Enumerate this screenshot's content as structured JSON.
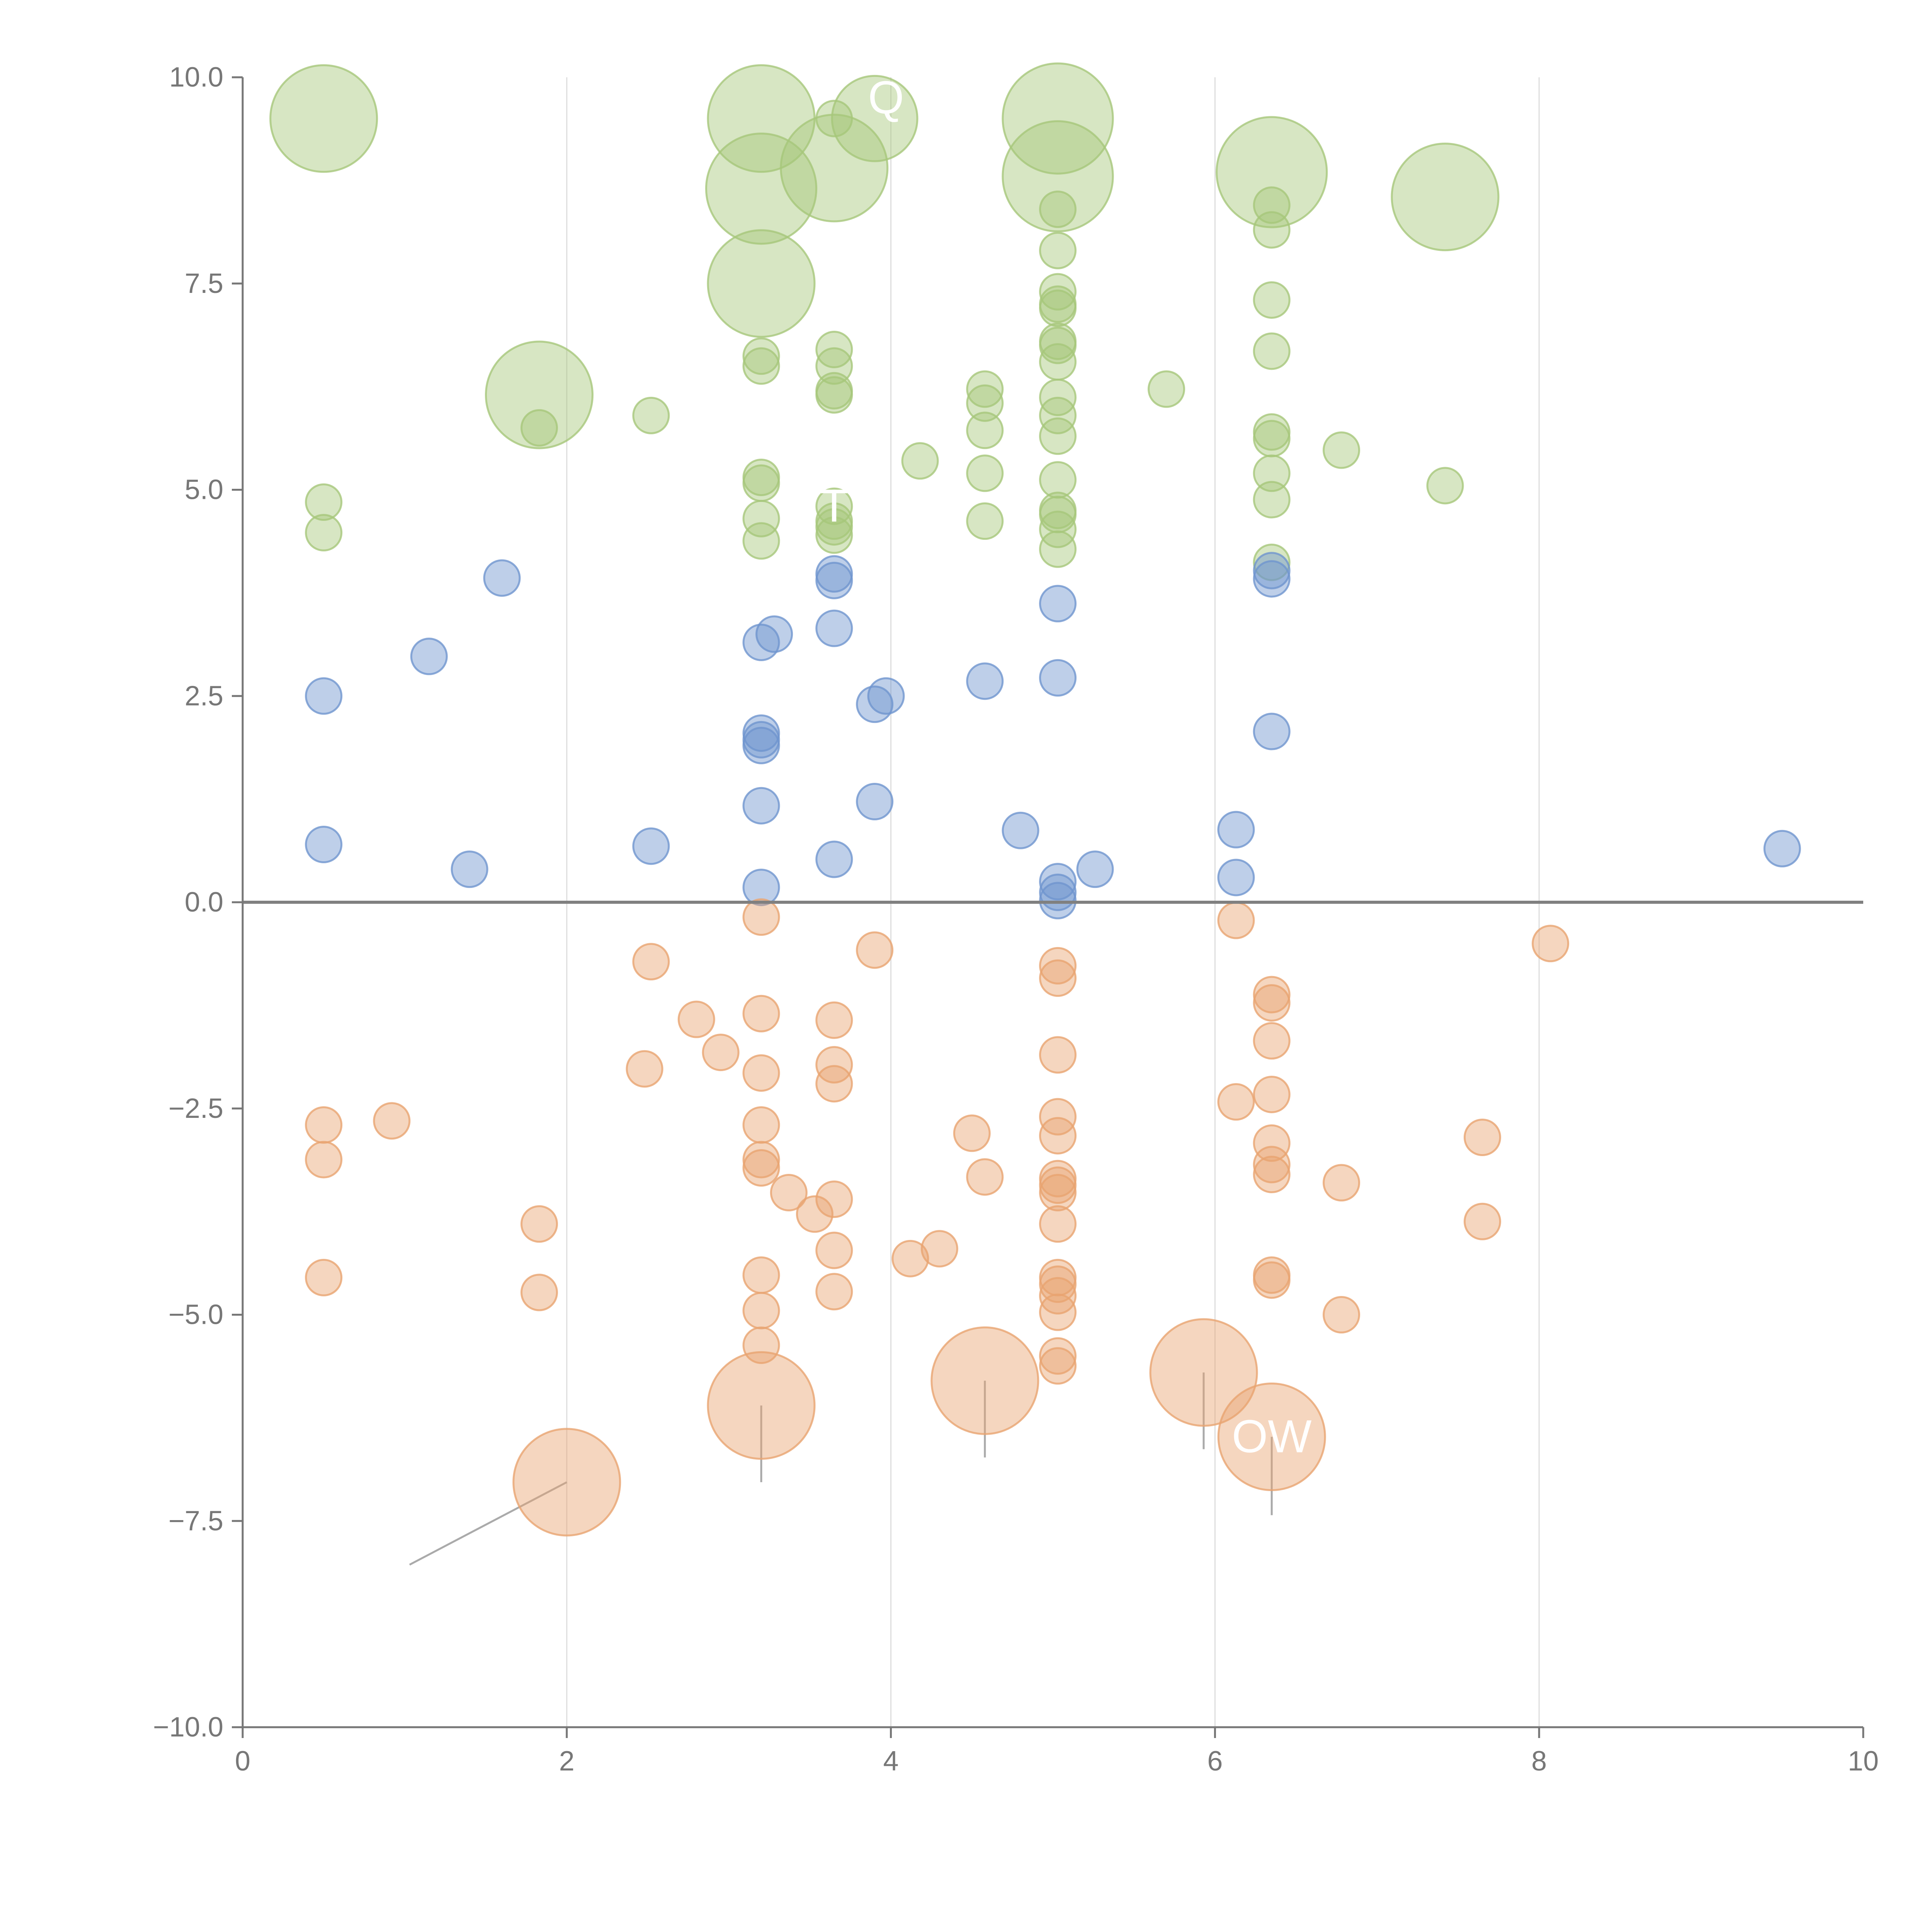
{
  "chart_data": {
    "type": "scatter",
    "title": "",
    "xlabel": "",
    "ylabel": "",
    "xlim": [
      0,
      10
    ],
    "ylim": [
      -10,
      10
    ],
    "xticks": [
      0,
      2,
      4,
      6,
      8,
      10
    ],
    "yticks": [
      -10,
      -7.5,
      -5,
      -2.5,
      0,
      2.5,
      5,
      7.5,
      10
    ],
    "xtick_labels": [
      "0",
      "2",
      "4",
      "6",
      "8",
      "10"
    ],
    "ytick_labels": [
      "−10.0",
      "−7.5",
      "−5.0",
      "−2.5",
      "0.0",
      "2.5",
      "5.0",
      "7.5",
      "10.0"
    ],
    "vertical_gridlines_at": [
      2,
      4,
      6,
      8
    ],
    "zero_line_y": 0,
    "colors": {
      "green": "#a6c77a",
      "blue": "#6f95ce",
      "orange": "#e9a471",
      "axis": "#777777",
      "grid": "#dddddd",
      "zero": "#808080",
      "leader": "#aaaaaa",
      "label": "#ffffff"
    },
    "series": [
      {
        "name": "green",
        "color": "#a6c77a",
        "points": [
          {
            "x": 0.5,
            "y": 9.5,
            "s": 3
          },
          {
            "x": 3.2,
            "y": 9.5,
            "s": 3
          },
          {
            "x": 3.65,
            "y": 9.5,
            "s": 1
          },
          {
            "x": 3.9,
            "y": 9.5,
            "s": 2.4
          },
          {
            "x": 5.03,
            "y": 9.5,
            "s": 3.1
          },
          {
            "x": 3.65,
            "y": 8.9,
            "s": 3
          },
          {
            "x": 5.03,
            "y": 8.8,
            "s": 3.1
          },
          {
            "x": 3.2,
            "y": 8.65,
            "s": 3.1
          },
          {
            "x": 6.35,
            "y": 8.85,
            "s": 3.1
          },
          {
            "x": 7.42,
            "y": 8.55,
            "s": 3
          },
          {
            "x": 6.35,
            "y": 8.45,
            "s": 1
          },
          {
            "x": 5.03,
            "y": 8.4,
            "s": 1
          },
          {
            "x": 6.35,
            "y": 8.15,
            "s": 1
          },
          {
            "x": 5.03,
            "y": 7.9,
            "s": 1
          },
          {
            "x": 3.2,
            "y": 7.5,
            "s": 3
          },
          {
            "x": 5.03,
            "y": 7.4,
            "s": 1
          },
          {
            "x": 6.35,
            "y": 7.3,
            "s": 1
          },
          {
            "x": 5.03,
            "y": 7.2,
            "s": 1
          },
          {
            "x": 5.03,
            "y": 7.25,
            "s": 1
          },
          {
            "x": 5.03,
            "y": 6.8,
            "s": 1
          },
          {
            "x": 5.03,
            "y": 6.75,
            "s": 1
          },
          {
            "x": 3.65,
            "y": 6.7,
            "s": 1
          },
          {
            "x": 6.35,
            "y": 6.68,
            "s": 1
          },
          {
            "x": 3.2,
            "y": 6.62,
            "s": 1
          },
          {
            "x": 5.03,
            "y": 6.55,
            "s": 1
          },
          {
            "x": 3.2,
            "y": 6.5,
            "s": 1
          },
          {
            "x": 3.65,
            "y": 6.5,
            "s": 1
          },
          {
            "x": 4.58,
            "y": 6.22,
            "s": 1
          },
          {
            "x": 5.7,
            "y": 6.22,
            "s": 1
          },
          {
            "x": 3.65,
            "y": 6.2,
            "s": 1
          },
          {
            "x": 3.65,
            "y": 6.15,
            "s": 1
          },
          {
            "x": 1.83,
            "y": 6.15,
            "s": 3
          },
          {
            "x": 5.03,
            "y": 6.12,
            "s": 1
          },
          {
            "x": 4.58,
            "y": 6.05,
            "s": 1
          },
          {
            "x": 2.52,
            "y": 5.9,
            "s": 1
          },
          {
            "x": 5.03,
            "y": 5.9,
            "s": 1
          },
          {
            "x": 1.83,
            "y": 5.75,
            "s": 1
          },
          {
            "x": 4.58,
            "y": 5.72,
            "s": 1
          },
          {
            "x": 6.35,
            "y": 5.7,
            "s": 1
          },
          {
            "x": 5.03,
            "y": 5.65,
            "s": 1
          },
          {
            "x": 6.35,
            "y": 5.62,
            "s": 1
          },
          {
            "x": 6.78,
            "y": 5.48,
            "s": 1
          },
          {
            "x": 4.18,
            "y": 5.35,
            "s": 1
          },
          {
            "x": 6.35,
            "y": 5.2,
            "s": 1
          },
          {
            "x": 4.58,
            "y": 5.2,
            "s": 1
          },
          {
            "x": 3.2,
            "y": 5.15,
            "s": 1
          },
          {
            "x": 5.03,
            "y": 5.12,
            "s": 1
          },
          {
            "x": 3.2,
            "y": 5.08,
            "s": 1
          },
          {
            "x": 7.42,
            "y": 5.05,
            "s": 1
          },
          {
            "x": 6.35,
            "y": 4.88,
            "s": 1
          },
          {
            "x": 0.5,
            "y": 4.85,
            "s": 1
          },
          {
            "x": 3.65,
            "y": 4.8,
            "s": 1
          },
          {
            "x": 5.03,
            "y": 4.75,
            "s": 1
          },
          {
            "x": 5.03,
            "y": 4.7,
            "s": 1
          },
          {
            "x": 3.2,
            "y": 4.65,
            "s": 1
          },
          {
            "x": 3.65,
            "y": 4.62,
            "s": 1
          },
          {
            "x": 4.58,
            "y": 4.62,
            "s": 1
          },
          {
            "x": 3.65,
            "y": 4.55,
            "s": 1
          },
          {
            "x": 5.03,
            "y": 4.52,
            "s": 1
          },
          {
            "x": 0.5,
            "y": 4.48,
            "s": 1
          },
          {
            "x": 3.65,
            "y": 4.45,
            "s": 1
          },
          {
            "x": 3.2,
            "y": 4.38,
            "s": 1
          },
          {
            "x": 5.03,
            "y": 4.28,
            "s": 1
          },
          {
            "x": 6.35,
            "y": 4.12,
            "s": 1
          }
        ]
      },
      {
        "name": "blue",
        "color": "#6f95ce",
        "points": [
          {
            "x": 6.35,
            "y": 4.02,
            "s": 1
          },
          {
            "x": 3.65,
            "y": 3.98,
            "s": 1
          },
          {
            "x": 1.6,
            "y": 3.93,
            "s": 1
          },
          {
            "x": 6.35,
            "y": 3.92,
            "s": 1
          },
          {
            "x": 3.65,
            "y": 3.9,
            "s": 1
          },
          {
            "x": 5.03,
            "y": 3.62,
            "s": 1
          },
          {
            "x": 3.65,
            "y": 3.32,
            "s": 1
          },
          {
            "x": 3.28,
            "y": 3.25,
            "s": 1
          },
          {
            "x": 3.2,
            "y": 3.15,
            "s": 1
          },
          {
            "x": 1.15,
            "y": 2.98,
            "s": 1
          },
          {
            "x": 5.03,
            "y": 2.72,
            "s": 1
          },
          {
            "x": 4.58,
            "y": 2.68,
            "s": 1
          },
          {
            "x": 0.5,
            "y": 2.5,
            "s": 1
          },
          {
            "x": 3.97,
            "y": 2.5,
            "s": 1
          },
          {
            "x": 3.9,
            "y": 2.4,
            "s": 1
          },
          {
            "x": 6.35,
            "y": 2.07,
            "s": 1
          },
          {
            "x": 3.2,
            "y": 2.05,
            "s": 1
          },
          {
            "x": 3.2,
            "y": 1.97,
            "s": 1
          },
          {
            "x": 3.2,
            "y": 1.9,
            "s": 1
          },
          {
            "x": 3.9,
            "y": 1.22,
            "s": 1
          },
          {
            "x": 3.2,
            "y": 1.17,
            "s": 1
          },
          {
            "x": 6.13,
            "y": 0.88,
            "s": 1
          },
          {
            "x": 4.8,
            "y": 0.87,
            "s": 1
          },
          {
            "x": 0.5,
            "y": 0.7,
            "s": 1
          },
          {
            "x": 2.52,
            "y": 0.68,
            "s": 1
          },
          {
            "x": 9.5,
            "y": 0.65,
            "s": 1
          },
          {
            "x": 3.65,
            "y": 0.52,
            "s": 1
          },
          {
            "x": 1.4,
            "y": 0.4,
            "s": 1
          },
          {
            "x": 5.26,
            "y": 0.4,
            "s": 1
          },
          {
            "x": 6.13,
            "y": 0.3,
            "s": 1
          },
          {
            "x": 5.03,
            "y": 0.25,
            "s": 1
          },
          {
            "x": 3.2,
            "y": 0.18,
            "s": 1
          },
          {
            "x": 5.03,
            "y": 0.12,
            "s": 1
          },
          {
            "x": 5.03,
            "y": 0.02,
            "s": 1
          }
        ]
      },
      {
        "name": "orange",
        "color": "#e9a471",
        "points": [
          {
            "x": 3.2,
            "y": -0.18,
            "s": 1
          },
          {
            "x": 6.13,
            "y": -0.22,
            "s": 1
          },
          {
            "x": 8.07,
            "y": -0.5,
            "s": 1
          },
          {
            "x": 3.9,
            "y": -0.58,
            "s": 1
          },
          {
            "x": 2.52,
            "y": -0.72,
            "s": 1
          },
          {
            "x": 5.03,
            "y": -0.77,
            "s": 1
          },
          {
            "x": 5.03,
            "y": -0.92,
            "s": 1
          },
          {
            "x": 6.35,
            "y": -1.12,
            "s": 1
          },
          {
            "x": 6.35,
            "y": -1.22,
            "s": 1
          },
          {
            "x": 3.2,
            "y": -1.35,
            "s": 1
          },
          {
            "x": 2.8,
            "y": -1.42,
            "s": 1
          },
          {
            "x": 3.65,
            "y": -1.43,
            "s": 1
          },
          {
            "x": 6.35,
            "y": -1.68,
            "s": 1
          },
          {
            "x": 2.95,
            "y": -1.82,
            "s": 1
          },
          {
            "x": 5.03,
            "y": -1.85,
            "s": 1
          },
          {
            "x": 3.65,
            "y": -1.97,
            "s": 1
          },
          {
            "x": 2.48,
            "y": -2.02,
            "s": 1
          },
          {
            "x": 3.2,
            "y": -2.07,
            "s": 1
          },
          {
            "x": 3.65,
            "y": -2.2,
            "s": 1
          },
          {
            "x": 6.35,
            "y": -2.33,
            "s": 1
          },
          {
            "x": 6.13,
            "y": -2.42,
            "s": 1
          },
          {
            "x": 5.03,
            "y": -2.6,
            "s": 1
          },
          {
            "x": 0.92,
            "y": -2.65,
            "s": 1
          },
          {
            "x": 3.2,
            "y": -2.7,
            "s": 1
          },
          {
            "x": 0.5,
            "y": -2.7,
            "s": 1
          },
          {
            "x": 4.5,
            "y": -2.8,
            "s": 1
          },
          {
            "x": 5.03,
            "y": -2.83,
            "s": 1
          },
          {
            "x": 7.65,
            "y": -2.85,
            "s": 1
          },
          {
            "x": 6.35,
            "y": -2.92,
            "s": 1
          },
          {
            "x": 3.2,
            "y": -3.12,
            "s": 1
          },
          {
            "x": 0.5,
            "y": -3.12,
            "s": 1
          },
          {
            "x": 6.35,
            "y": -3.18,
            "s": 1
          },
          {
            "x": 3.2,
            "y": -3.22,
            "s": 1
          },
          {
            "x": 6.35,
            "y": -3.3,
            "s": 1
          },
          {
            "x": 4.58,
            "y": -3.33,
            "s": 1
          },
          {
            "x": 5.03,
            "y": -3.35,
            "s": 1
          },
          {
            "x": 6.78,
            "y": -3.4,
            "s": 1
          },
          {
            "x": 5.03,
            "y": -3.43,
            "s": 1
          },
          {
            "x": 3.37,
            "y": -3.52,
            "s": 1
          },
          {
            "x": 5.03,
            "y": -3.52,
            "s": 1
          },
          {
            "x": 3.65,
            "y": -3.6,
            "s": 1
          },
          {
            "x": 3.53,
            "y": -3.78,
            "s": 1
          },
          {
            "x": 7.65,
            "y": -3.87,
            "s": 1
          },
          {
            "x": 1.83,
            "y": -3.9,
            "s": 1
          },
          {
            "x": 5.03,
            "y": -3.9,
            "s": 1
          },
          {
            "x": 4.3,
            "y": -4.2,
            "s": 1
          },
          {
            "x": 3.65,
            "y": -4.22,
            "s": 1
          },
          {
            "x": 4.12,
            "y": -4.32,
            "s": 1
          },
          {
            "x": 3.2,
            "y": -4.52,
            "s": 1
          },
          {
            "x": 6.35,
            "y": -4.52,
            "s": 1
          },
          {
            "x": 5.03,
            "y": -4.55,
            "s": 1
          },
          {
            "x": 0.5,
            "y": -4.55,
            "s": 1
          },
          {
            "x": 6.35,
            "y": -4.58,
            "s": 1
          },
          {
            "x": 5.03,
            "y": -4.63,
            "s": 1
          },
          {
            "x": 3.65,
            "y": -4.72,
            "s": 1
          },
          {
            "x": 1.83,
            "y": -4.73,
            "s": 1
          },
          {
            "x": 5.03,
            "y": -4.77,
            "s": 1
          },
          {
            "x": 3.2,
            "y": -4.95,
            "s": 1
          },
          {
            "x": 5.03,
            "y": -4.97,
            "s": 1
          },
          {
            "x": 6.78,
            "y": -5.0,
            "s": 1
          },
          {
            "x": 3.2,
            "y": -5.37,
            "s": 1
          },
          {
            "x": 5.03,
            "y": -5.5,
            "s": 1
          },
          {
            "x": 5.03,
            "y": -5.62,
            "s": 1
          },
          {
            "x": 5.93,
            "y": -5.7,
            "s": 3
          },
          {
            "x": 4.58,
            "y": -5.8,
            "s": 3
          },
          {
            "x": 3.2,
            "y": -6.1,
            "s": 3
          },
          {
            "x": 6.35,
            "y": -6.48,
            "s": 3
          },
          {
            "x": 2.0,
            "y": -7.03,
            "s": 3
          }
        ]
      }
    ],
    "annotations": [
      {
        "text": "Q",
        "x": 3.97,
        "y": 9.75
      },
      {
        "text": "T",
        "x": 3.65,
        "y": 4.8
      },
      {
        "text": "OW",
        "x": 6.35,
        "y": -6.48
      }
    ],
    "leaders": [
      {
        "x1": 2.0,
        "y1": -7.03,
        "x2": 1.03,
        "y2": -8.03
      },
      {
        "x1": 3.2,
        "y1": -6.1,
        "x2": 3.2,
        "y2": -7.03
      },
      {
        "x1": 4.58,
        "y1": -5.8,
        "x2": 4.58,
        "y2": -6.73
      },
      {
        "x1": 5.93,
        "y1": -5.7,
        "x2": 5.93,
        "y2": -6.63
      },
      {
        "x1": 6.35,
        "y1": -6.48,
        "x2": 6.35,
        "y2": -7.43
      }
    ]
  }
}
